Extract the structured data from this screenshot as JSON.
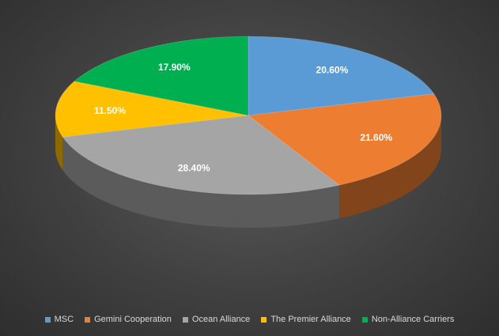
{
  "chart_data": {
    "type": "pie",
    "title": "",
    "categories": [
      "MSC",
      "Gemini Cooperation",
      "Ocean Alliance",
      "The Premier Alliance",
      "Non-Alliance Carriers"
    ],
    "values": [
      20.6,
      21.6,
      28.4,
      11.5,
      17.9
    ],
    "labels": [
      "20.60%",
      "21.60%",
      "28.40%",
      "11.50%",
      "17.90%"
    ],
    "colors": [
      "#5B9BD5",
      "#ED7D31",
      "#A5A5A5",
      "#FFC000",
      "#00B050"
    ],
    "style": "3d",
    "legend_position": "bottom"
  },
  "legend": {
    "items": [
      {
        "label": "MSC",
        "color": "#5B9BD5"
      },
      {
        "label": "Gemini Cooperation",
        "color": "#ED7D31"
      },
      {
        "label": "Ocean Alliance",
        "color": "#A5A5A5"
      },
      {
        "label": "The Premier Alliance",
        "color": "#FFC000"
      },
      {
        "label": "Non-Alliance Carriers",
        "color": "#00B050"
      }
    ]
  }
}
